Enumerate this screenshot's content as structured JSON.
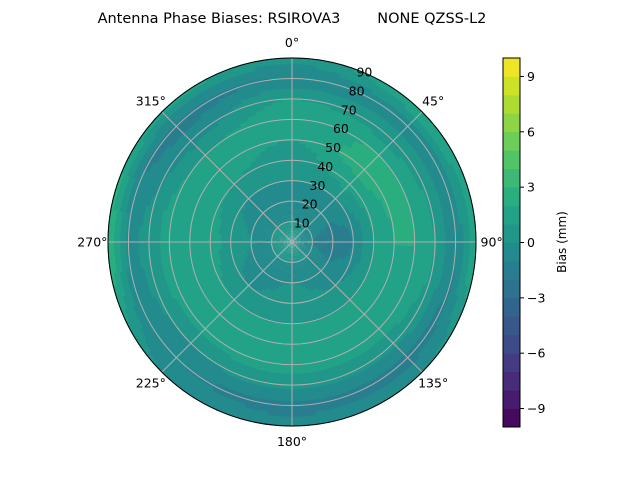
{
  "chart_data": {
    "type": "polar-contour",
    "title": "Antenna Phase Biases: RSIROVA3        NONE QZSS-L2",
    "angle_tick_labels": [
      "0°",
      "45°",
      "90°",
      "135°",
      "180°",
      "225°",
      "270°",
      "315°"
    ],
    "angle_ticks": [
      0,
      45,
      90,
      135,
      180,
      225,
      270,
      315
    ],
    "radial_tick_labels": [
      "10",
      "20",
      "30",
      "40",
      "50",
      "60",
      "70",
      "80",
      "90"
    ],
    "radial_ticks": [
      10,
      20,
      30,
      40,
      50,
      60,
      70,
      80,
      90
    ],
    "radial_range": [
      0,
      90
    ],
    "theta_direction": "clockwise",
    "theta_zero": "north",
    "grid": true,
    "colormap": "viridis",
    "colorbar": {
      "label": "Bias (mm)",
      "range": [
        -10,
        10
      ],
      "levels_step": 1,
      "tick_values": [
        -9,
        -6,
        -3,
        0,
        3,
        6,
        9
      ],
      "tick_labels": [
        "−9",
        "−6",
        "−3",
        "0",
        "3",
        "6",
        "9"
      ]
    },
    "grid_azimuth_deg": [
      0,
      45,
      90,
      135,
      180,
      225,
      270,
      315
    ],
    "grid_zenith_deg": [
      0,
      10,
      20,
      30,
      40,
      50,
      60,
      70,
      80,
      90
    ],
    "bias_mm": [
      [
        0,
        0,
        -0.5,
        0,
        0.5,
        1,
        1.5,
        1,
        -1,
        0.5
      ],
      [
        0,
        0,
        -0.5,
        0,
        1.5,
        2.5,
        2,
        0.5,
        -0.5,
        2
      ],
      [
        0,
        -1,
        -2,
        -1,
        1,
        2,
        2,
        1,
        -1,
        2
      ],
      [
        0,
        0,
        -0.5,
        0,
        1,
        2,
        1.5,
        0.5,
        -1.5,
        0
      ],
      [
        0,
        0,
        0,
        0.5,
        1,
        1.5,
        1.5,
        0.5,
        -1.5,
        -0.5
      ],
      [
        0,
        0,
        -0.5,
        0,
        1,
        1.5,
        1.5,
        0,
        -1,
        0
      ],
      [
        0,
        0,
        0,
        0.5,
        1.5,
        2,
        1.5,
        0.5,
        -0.5,
        3
      ],
      [
        0,
        0,
        -0.5,
        0,
        1,
        1.5,
        1,
        -0.5,
        -1.5,
        1.5
      ]
    ]
  }
}
